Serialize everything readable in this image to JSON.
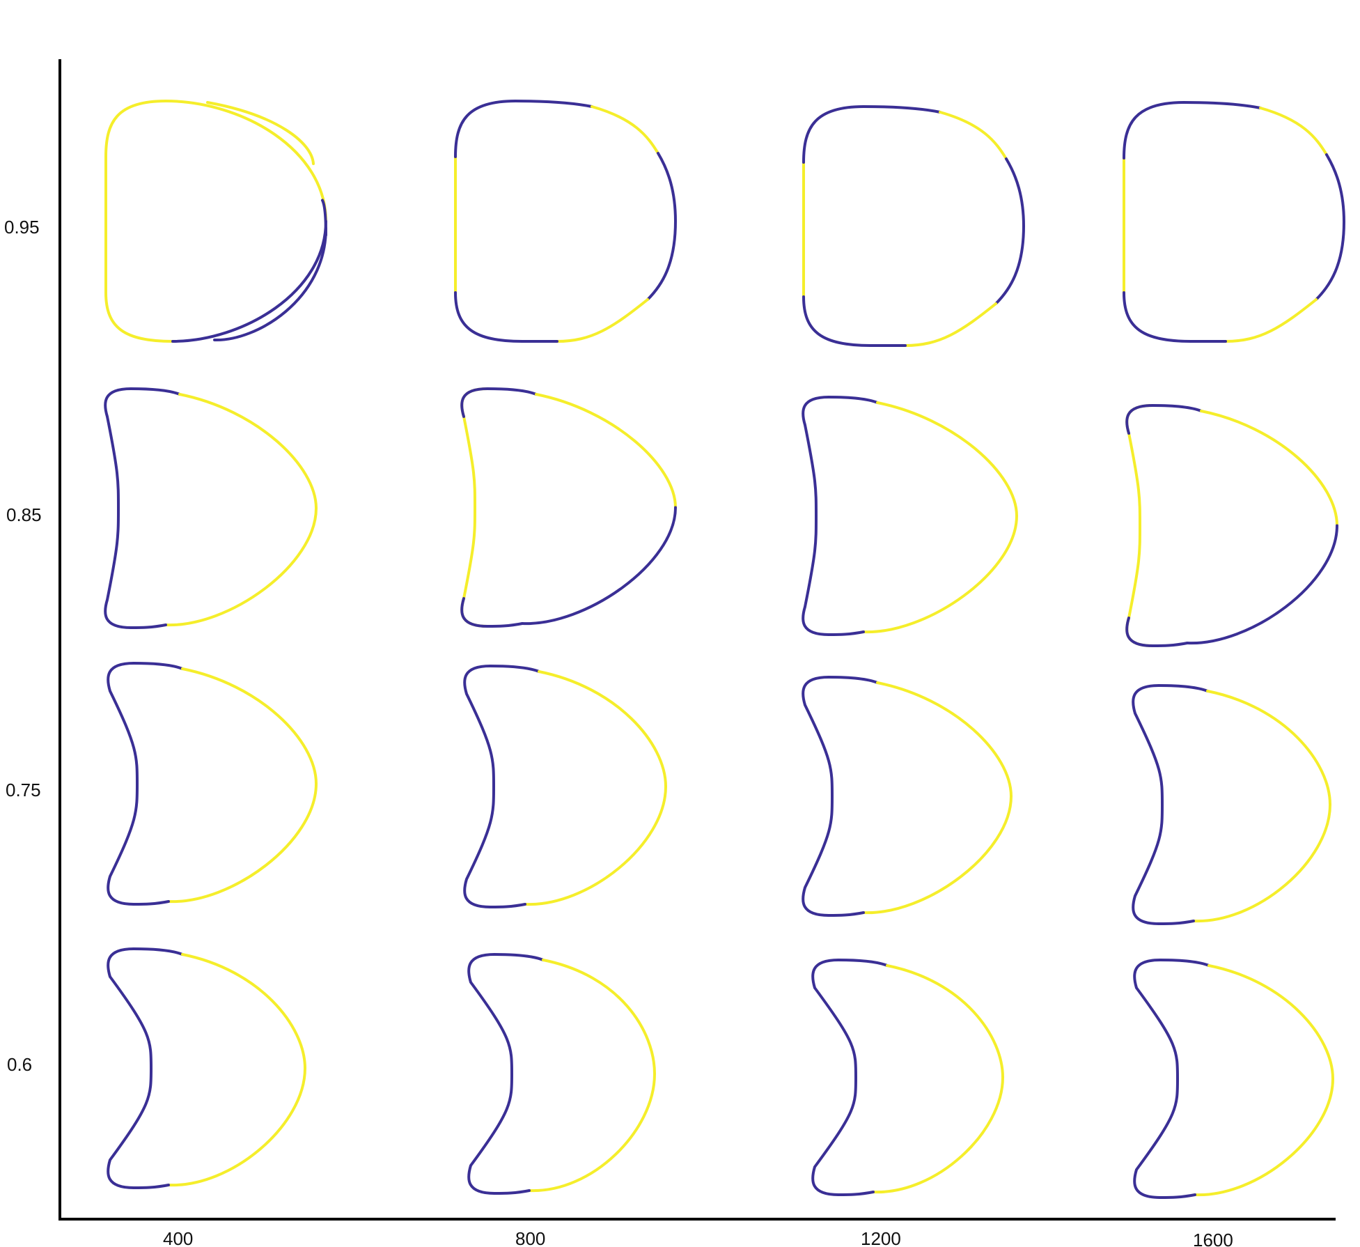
{
  "figure": {
    "type": "shape-grid",
    "x_axis": {
      "label": "",
      "ticks": [
        "400",
        "800",
        "1200",
        "1600"
      ]
    },
    "y_axis": {
      "label": "",
      "ticks": [
        "0.95",
        "0.85",
        "0.75",
        "0.6"
      ]
    },
    "colors": {
      "outline_primary": "#3a2f95",
      "outline_highlight": "#f5ee2b",
      "transition": "#2ea0c9",
      "axis": "#000000",
      "background": "#ffffff"
    },
    "description_rows": [
      {
        "y_value": "0.95",
        "shape": "rounded D-shape"
      },
      {
        "y_value": "0.85",
        "shape": "bean with slight concave back"
      },
      {
        "y_value": "0.75",
        "shape": "crescent"
      },
      {
        "y_value": "0.6",
        "shape": "deep crescent"
      }
    ]
  }
}
